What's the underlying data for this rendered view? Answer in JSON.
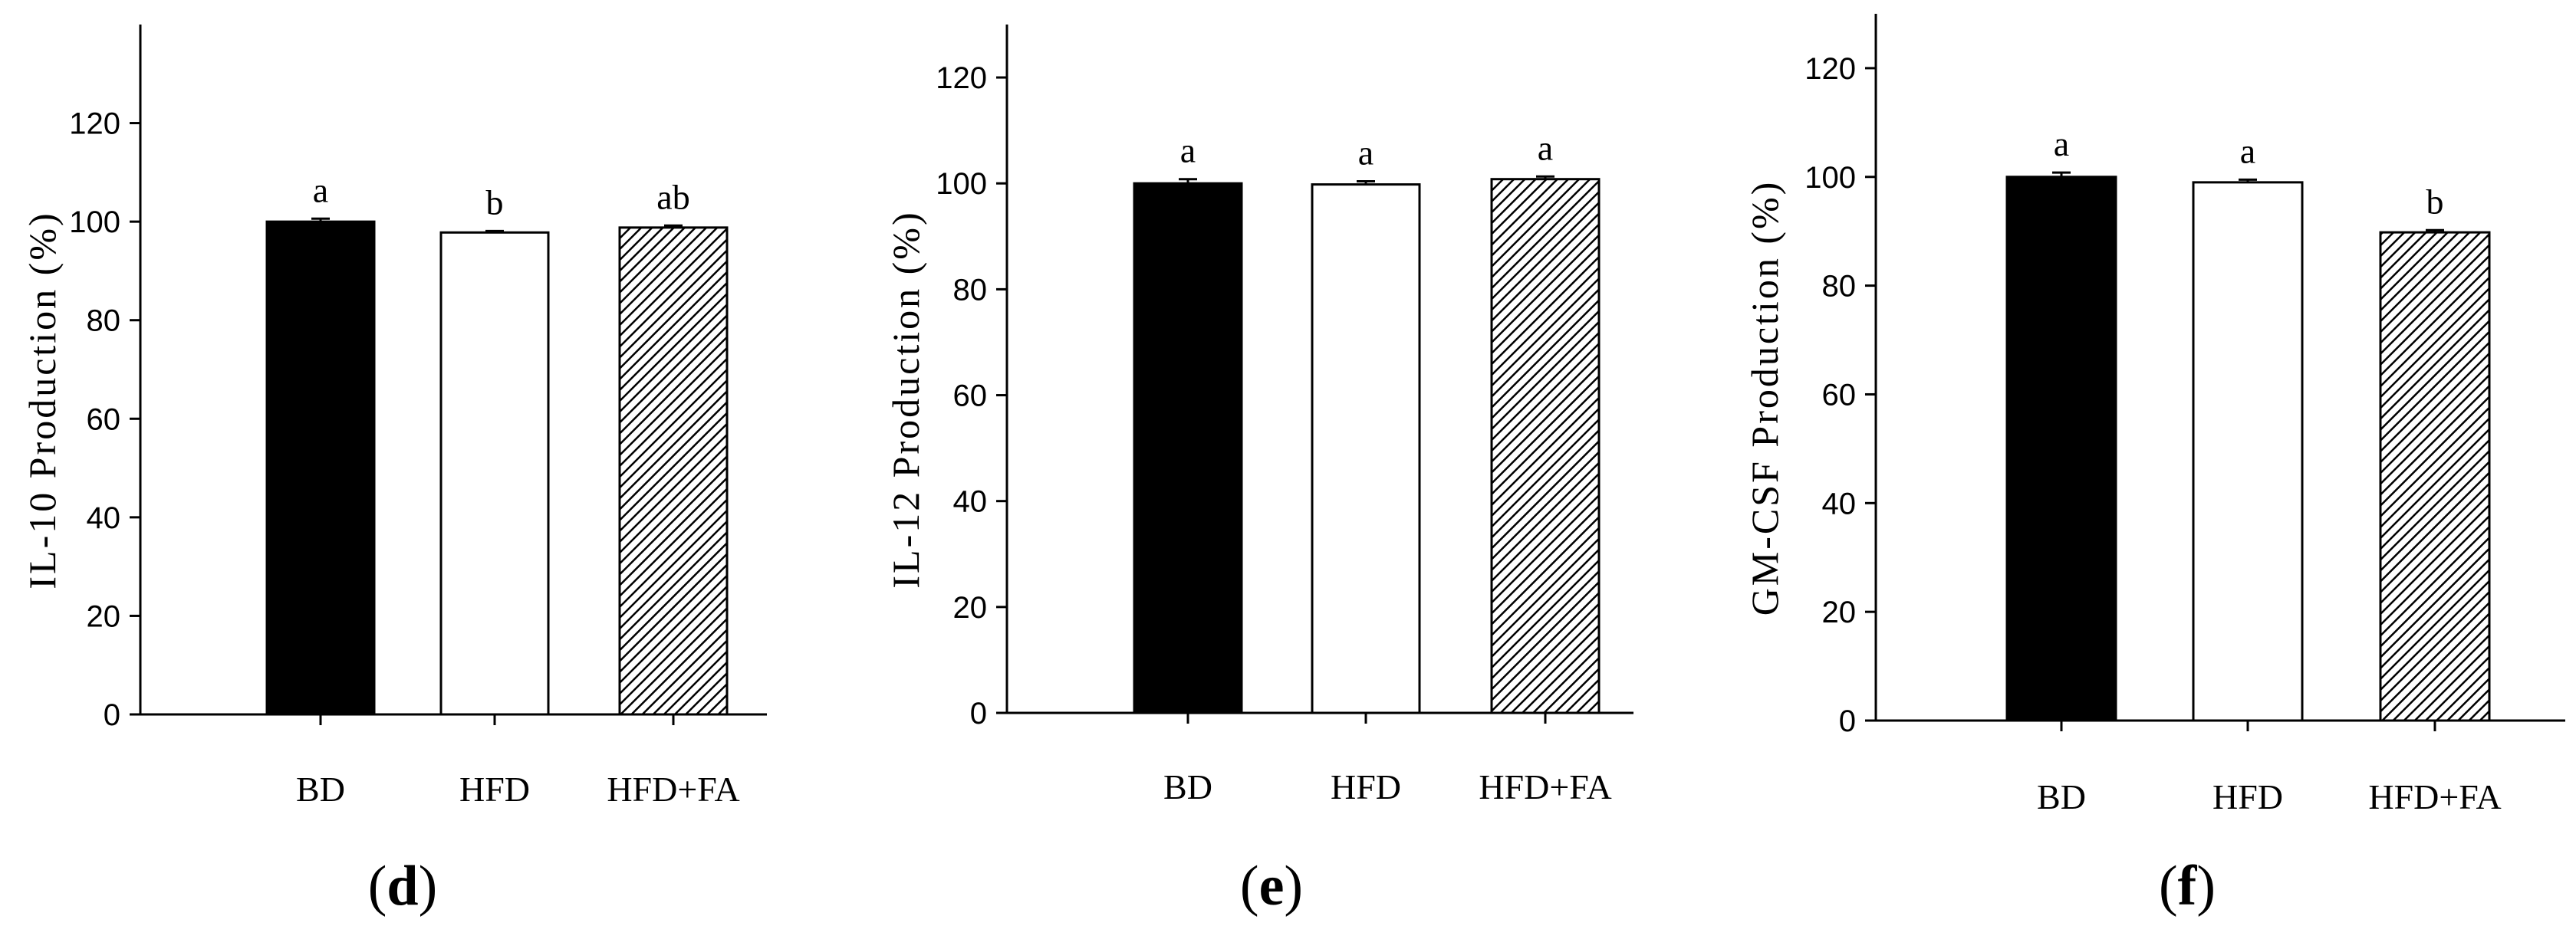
{
  "chart_data": [
    {
      "type": "bar",
      "panel_label": "d",
      "categories": [
        "BD",
        "HFD",
        "HFD+FA"
      ],
      "values": [
        100,
        97.8,
        98.8
      ],
      "errors": [
        0.6,
        0.3,
        0.4
      ],
      "significance": [
        "a",
        "b",
        "ab"
      ],
      "fills": [
        "solid-black",
        "white",
        "hatched"
      ],
      "ylabel": "IL-10 Production (%)",
      "yticks": [
        0,
        20,
        40,
        60,
        80,
        100,
        120
      ],
      "ylim": [
        0,
        140
      ],
      "grid": false
    },
    {
      "type": "bar",
      "panel_label": "e",
      "categories": [
        "BD",
        "HFD",
        "HFD+FA"
      ],
      "values": [
        100,
        99.8,
        100.8
      ],
      "errors": [
        0.8,
        0.6,
        0.5
      ],
      "significance": [
        "a",
        "a",
        "a"
      ],
      "fills": [
        "solid-black",
        "white",
        "hatched"
      ],
      "ylabel": "IL-12 Production (%)",
      "yticks": [
        0,
        20,
        40,
        60,
        80,
        100,
        120
      ],
      "ylim": [
        0,
        130
      ],
      "grid": false
    },
    {
      "type": "bar",
      "panel_label": "f",
      "categories": [
        "BD",
        "HFD",
        "HFD+FA"
      ],
      "values": [
        100,
        99,
        89.8
      ],
      "errors": [
        0.8,
        0.5,
        0.4
      ],
      "significance": [
        "a",
        "a",
        "b"
      ],
      "fills": [
        "solid-black",
        "white",
        "hatched"
      ],
      "ylabel": "GM-CSF Production (%)",
      "yticks": [
        0,
        20,
        40,
        60,
        80,
        100,
        120
      ],
      "ylim": [
        0,
        130
      ],
      "grid": false
    }
  ],
  "colors": {
    "bar_dark": "#000000",
    "bar_light": "#ffffff",
    "axis": "#000000"
  }
}
